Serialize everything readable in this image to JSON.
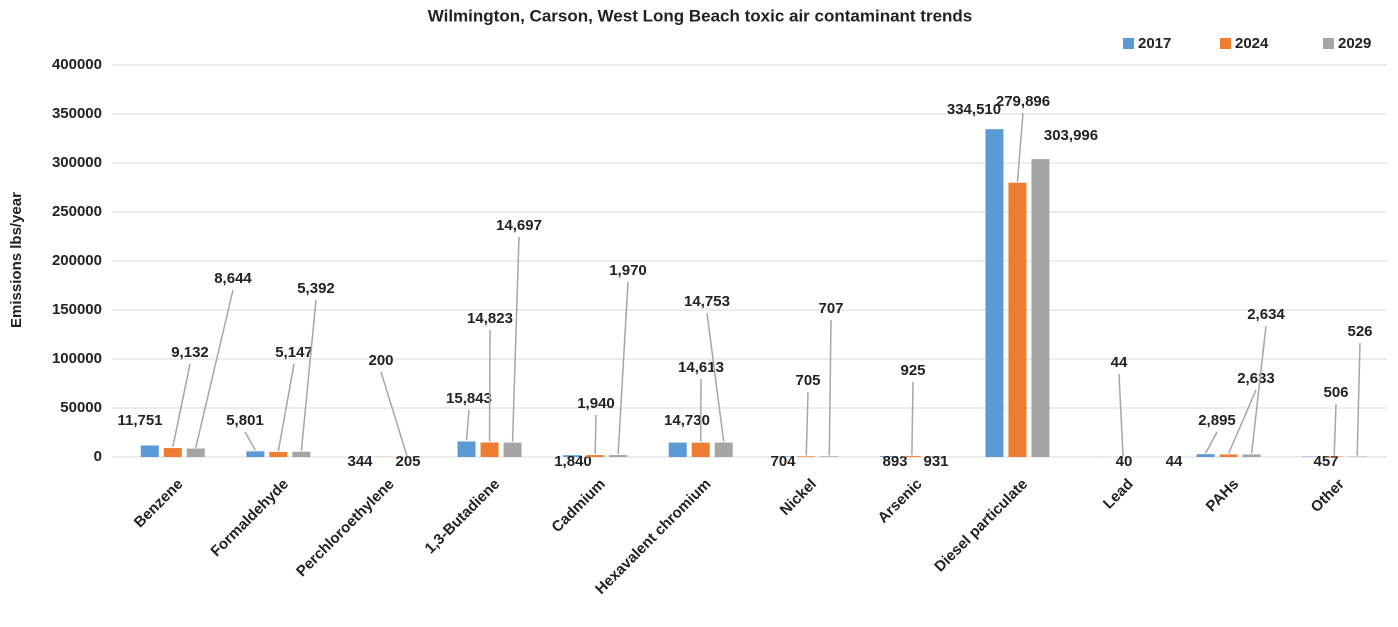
{
  "chart_data": {
    "type": "bar",
    "title": "Wilmington, Carson, West Long Beach toxic air contaminant trends",
    "y_label": "Emissions lbs/year",
    "categories": [
      "Benzene",
      "Formaldehyde",
      "Perchloroethylene",
      "1,3-Butadiene",
      "Cadmium",
      "Hexavalent chromium",
      "Nickel",
      "Arsenic",
      "Diesel particulate",
      "Lead",
      "PAHs",
      "Other"
    ],
    "series": [
      {
        "name": "2017",
        "color": "#5b9bd5",
        "values": [
          11751,
          5801,
          344,
          15843,
          1840,
          14730,
          704,
          893,
          334510,
          40,
          2895,
          457
        ],
        "value_labels": [
          "11,751",
          "5,801",
          "344",
          "15,843",
          "1,840",
          "14,730",
          "704",
          "893",
          "334,510",
          "40",
          "2,895",
          "457"
        ]
      },
      {
        "name": "2024",
        "color": "#ed7d31",
        "values": [
          9132,
          5147,
          205,
          14823,
          1940,
          14613,
          705,
          925,
          279896,
          44,
          2633,
          506
        ],
        "value_labels": [
          "9,132",
          "5,147",
          "205",
          "14,823",
          "1,940",
          "14,613",
          "705",
          "925",
          "279,896",
          "44",
          "2,633",
          "506"
        ]
      },
      {
        "name": "2029",
        "color": "#a5a5a5",
        "values": [
          8644,
          5392,
          200,
          14697,
          1970,
          14753,
          707,
          931,
          303996,
          44,
          2634,
          526
        ],
        "value_labels": [
          "8,644",
          "5,392",
          "200",
          "14,697",
          "1,970",
          "14,753",
          "707",
          "931",
          "303,996",
          "44",
          "2,634",
          "526"
        ]
      }
    ],
    "ylim": [
      0,
      400000
    ],
    "yticks": [
      0,
      50000,
      100000,
      150000,
      200000,
      250000,
      300000,
      350000,
      400000
    ],
    "grid": true,
    "legend": "top-right"
  }
}
